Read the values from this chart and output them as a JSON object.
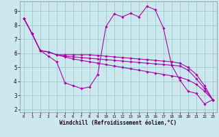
{
  "xlabel": "Windchill (Refroidissement éolien,°C)",
  "bg_color": "#cce8ee",
  "line_color": "#aa00aa",
  "grid_color": "#99cccc",
  "xlim": [
    -0.5,
    23.5
  ],
  "ylim": [
    1.8,
    9.7
  ],
  "xticks": [
    0,
    1,
    2,
    3,
    4,
    5,
    6,
    7,
    8,
    9,
    10,
    11,
    12,
    13,
    14,
    15,
    16,
    17,
    18,
    19,
    20,
    21,
    22,
    23
  ],
  "yticks": [
    2,
    3,
    4,
    5,
    6,
    7,
    8,
    9
  ],
  "series": [
    [
      8.5,
      7.4,
      6.2,
      5.8,
      5.4,
      3.9,
      3.7,
      3.5,
      3.6,
      4.5,
      7.9,
      8.8,
      8.6,
      8.85,
      8.6,
      9.35,
      9.1,
      7.8,
      5.15,
      4.1,
      3.3,
      3.15,
      2.4,
      2.7
    ],
    [
      8.5,
      7.4,
      6.2,
      6.1,
      5.9,
      5.75,
      5.6,
      5.5,
      5.4,
      5.3,
      5.2,
      5.1,
      5.0,
      4.9,
      4.8,
      4.7,
      4.6,
      4.5,
      4.4,
      4.3,
      4.1,
      3.8,
      3.3,
      2.7
    ],
    [
      8.5,
      7.4,
      6.2,
      6.1,
      5.9,
      5.8,
      5.75,
      5.7,
      5.65,
      5.6,
      5.55,
      5.5,
      5.45,
      5.4,
      5.35,
      5.3,
      5.25,
      5.2,
      5.15,
      5.1,
      4.8,
      4.2,
      3.5,
      2.7
    ],
    [
      8.5,
      7.4,
      6.2,
      6.1,
      5.9,
      5.9,
      5.9,
      5.9,
      5.9,
      5.85,
      5.8,
      5.75,
      5.7,
      5.65,
      5.6,
      5.55,
      5.5,
      5.45,
      5.4,
      5.3,
      5.0,
      4.5,
      3.7,
      2.7
    ]
  ]
}
